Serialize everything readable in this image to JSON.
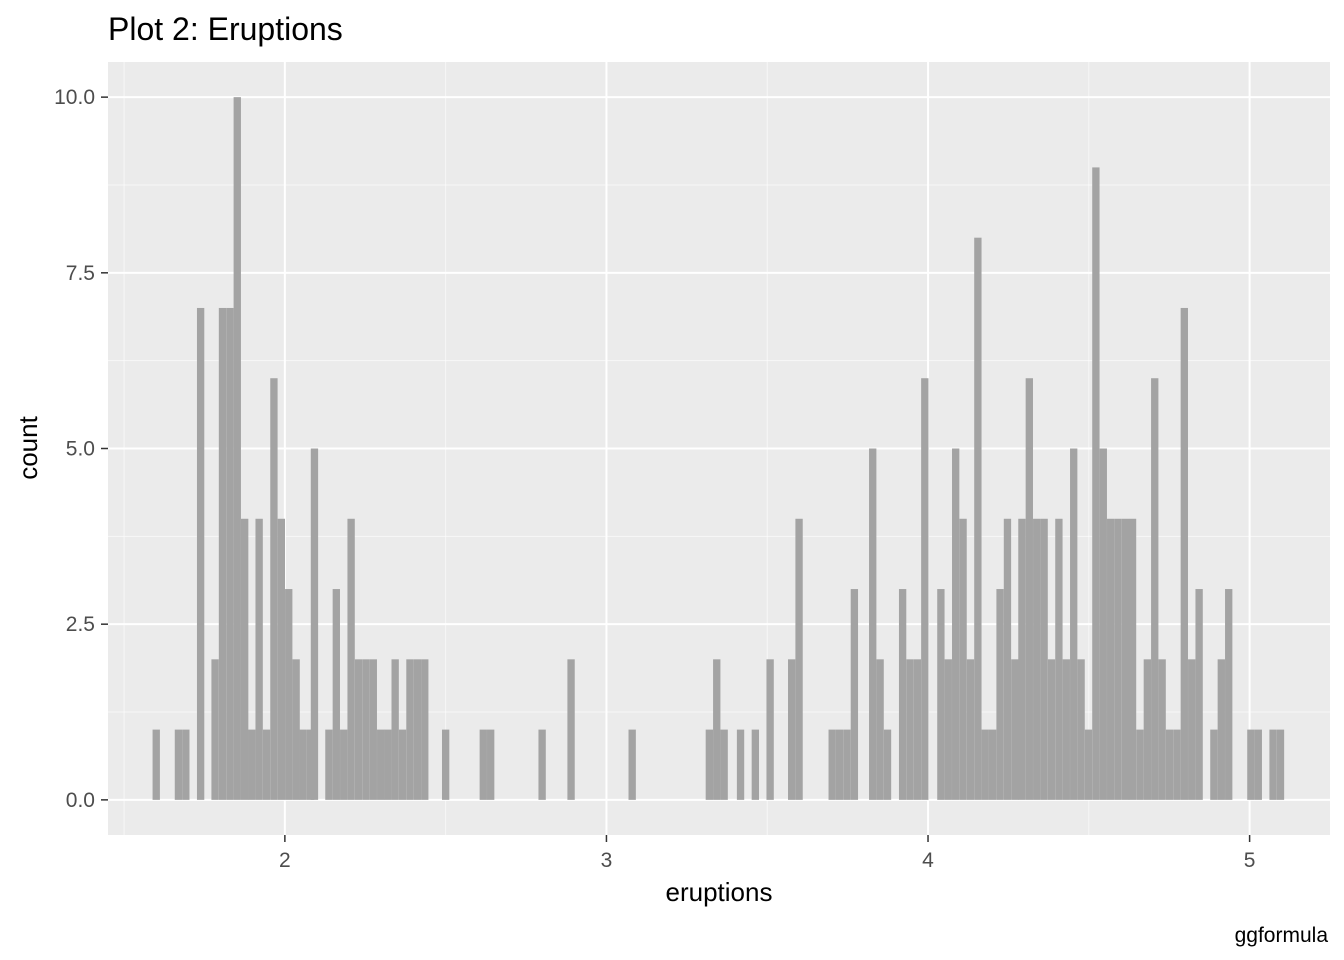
{
  "chart_data": {
    "type": "bar",
    "title": "Plot 2: Eruptions",
    "xlabel": "eruptions",
    "ylabel": "count",
    "caption": "ggformula",
    "xlim": [
      1.45,
      5.25
    ],
    "ylim": [
      -0.5,
      10.5
    ],
    "x_ticks": [
      2,
      3,
      4,
      5
    ],
    "x_tick_labels": [
      "2",
      "3",
      "4",
      "5"
    ],
    "y_ticks": [
      0,
      2.5,
      5,
      7.5,
      10
    ],
    "y_tick_labels": [
      "0.0",
      "2.5",
      "5.0",
      "7.5",
      "10.0"
    ],
    "bin_width": 0.0228,
    "grid": true,
    "colors": {
      "panel": "#ebebeb",
      "grid": "#ffffff",
      "bar": "#a3a3a3",
      "tick": "#333333"
    },
    "bins": [
      {
        "x": 1.6,
        "count": 1
      },
      {
        "x": 1.669,
        "count": 1
      },
      {
        "x": 1.692,
        "count": 1
      },
      {
        "x": 1.738,
        "count": 7
      },
      {
        "x": 1.783,
        "count": 2
      },
      {
        "x": 1.806,
        "count": 7
      },
      {
        "x": 1.829,
        "count": 7
      },
      {
        "x": 1.852,
        "count": 10
      },
      {
        "x": 1.875,
        "count": 4
      },
      {
        "x": 1.897,
        "count": 1
      },
      {
        "x": 1.92,
        "count": 4
      },
      {
        "x": 1.943,
        "count": 1
      },
      {
        "x": 1.966,
        "count": 6
      },
      {
        "x": 1.989,
        "count": 4
      },
      {
        "x": 2.012,
        "count": 3
      },
      {
        "x": 2.035,
        "count": 2
      },
      {
        "x": 2.057,
        "count": 1
      },
      {
        "x": 2.08,
        "count": 1
      },
      {
        "x": 2.092,
        "count": 5
      },
      {
        "x": 2.137,
        "count": 1
      },
      {
        "x": 2.16,
        "count": 3
      },
      {
        "x": 2.183,
        "count": 1
      },
      {
        "x": 2.206,
        "count": 4
      },
      {
        "x": 2.229,
        "count": 2
      },
      {
        "x": 2.252,
        "count": 2
      },
      {
        "x": 2.275,
        "count": 2
      },
      {
        "x": 2.298,
        "count": 1
      },
      {
        "x": 2.32,
        "count": 1
      },
      {
        "x": 2.343,
        "count": 2
      },
      {
        "x": 2.366,
        "count": 1
      },
      {
        "x": 2.389,
        "count": 2
      },
      {
        "x": 2.412,
        "count": 2
      },
      {
        "x": 2.435,
        "count": 2
      },
      {
        "x": 2.5,
        "count": 1
      },
      {
        "x": 2.617,
        "count": 1
      },
      {
        "x": 2.64,
        "count": 1
      },
      {
        "x": 2.8,
        "count": 1
      },
      {
        "x": 2.89,
        "count": 2
      },
      {
        "x": 3.08,
        "count": 1
      },
      {
        "x": 3.32,
        "count": 1
      },
      {
        "x": 3.343,
        "count": 2
      },
      {
        "x": 3.366,
        "count": 1
      },
      {
        "x": 3.417,
        "count": 1
      },
      {
        "x": 3.463,
        "count": 1
      },
      {
        "x": 3.509,
        "count": 2
      },
      {
        "x": 3.576,
        "count": 2
      },
      {
        "x": 3.599,
        "count": 4
      },
      {
        "x": 3.702,
        "count": 1
      },
      {
        "x": 3.725,
        "count": 1
      },
      {
        "x": 3.748,
        "count": 1
      },
      {
        "x": 3.771,
        "count": 3
      },
      {
        "x": 3.828,
        "count": 5
      },
      {
        "x": 3.851,
        "count": 2
      },
      {
        "x": 3.874,
        "count": 1
      },
      {
        "x": 3.921,
        "count": 3
      },
      {
        "x": 3.944,
        "count": 2
      },
      {
        "x": 3.967,
        "count": 2
      },
      {
        "x": 3.99,
        "count": 6
      },
      {
        "x": 4.04,
        "count": 3
      },
      {
        "x": 4.063,
        "count": 2
      },
      {
        "x": 4.086,
        "count": 5
      },
      {
        "x": 4.109,
        "count": 4
      },
      {
        "x": 4.132,
        "count": 2
      },
      {
        "x": 4.155,
        "count": 8
      },
      {
        "x": 4.178,
        "count": 1
      },
      {
        "x": 4.201,
        "count": 1
      },
      {
        "x": 4.224,
        "count": 3
      },
      {
        "x": 4.247,
        "count": 4
      },
      {
        "x": 4.27,
        "count": 2
      },
      {
        "x": 4.292,
        "count": 4
      },
      {
        "x": 4.315,
        "count": 6
      },
      {
        "x": 4.338,
        "count": 4
      },
      {
        "x": 4.361,
        "count": 4
      },
      {
        "x": 4.384,
        "count": 2
      },
      {
        "x": 4.407,
        "count": 4
      },
      {
        "x": 4.43,
        "count": 2
      },
      {
        "x": 4.453,
        "count": 5
      },
      {
        "x": 4.476,
        "count": 2
      },
      {
        "x": 4.499,
        "count": 1
      },
      {
        "x": 4.522,
        "count": 9
      },
      {
        "x": 4.545,
        "count": 5
      },
      {
        "x": 4.568,
        "count": 4
      },
      {
        "x": 4.591,
        "count": 4
      },
      {
        "x": 4.614,
        "count": 4
      },
      {
        "x": 4.636,
        "count": 4
      },
      {
        "x": 4.659,
        "count": 1
      },
      {
        "x": 4.682,
        "count": 2
      },
      {
        "x": 4.705,
        "count": 6
      },
      {
        "x": 4.728,
        "count": 2
      },
      {
        "x": 4.751,
        "count": 1
      },
      {
        "x": 4.774,
        "count": 1
      },
      {
        "x": 4.797,
        "count": 7
      },
      {
        "x": 4.82,
        "count": 2
      },
      {
        "x": 4.843,
        "count": 3
      },
      {
        "x": 4.889,
        "count": 1
      },
      {
        "x": 4.912,
        "count": 2
      },
      {
        "x": 4.935,
        "count": 3
      },
      {
        "x": 5.004,
        "count": 1
      },
      {
        "x": 5.027,
        "count": 1
      },
      {
        "x": 5.096,
        "count": 1
      },
      {
        "x": 5.073,
        "count": 1
      }
    ]
  }
}
